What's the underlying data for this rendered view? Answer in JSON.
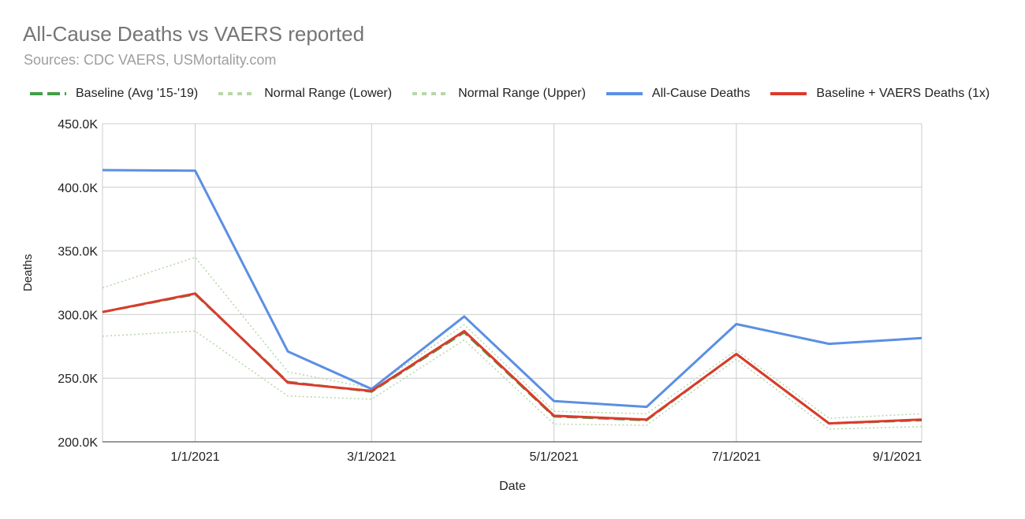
{
  "chart_data": {
    "type": "line",
    "title": "All-Cause Deaths vs VAERS reported",
    "subtitle": "Sources: CDC VAERS, USMortality.com",
    "xlabel": "Date",
    "ylabel": "Deaths",
    "x": [
      "2020-12-01",
      "2021-01-01",
      "2021-02-01",
      "2021-03-01",
      "2021-04-01",
      "2021-05-01",
      "2021-06-01",
      "2021-07-01",
      "2021-08-01",
      "2021-09-01"
    ],
    "x_tick_labels": [
      "1/1/2021",
      "3/1/2021",
      "5/1/2021",
      "7/1/2021",
      "9/1/2021"
    ],
    "y_tick_labels": [
      "200.0K",
      "250.0K",
      "300.0K",
      "350.0K",
      "400.0K",
      "450.0K"
    ],
    "ylim": [
      200000,
      450000
    ],
    "grid": true,
    "legend_position": "top",
    "series": [
      {
        "name": "Baseline (Avg '15-'19)",
        "color": "#43a047",
        "style": "dashed",
        "values": [
          302000,
          316000,
          247000,
          239500,
          286000,
          220000,
          217000,
          269000,
          214500,
          217000
        ]
      },
      {
        "name": "Normal Range (Lower)",
        "color": "#b7d7a8",
        "style": "dotted",
        "values": [
          283000,
          287000,
          236000,
          233500,
          280000,
          214000,
          213000,
          265000,
          210000,
          212000
        ]
      },
      {
        "name": "Normal Range (Upper)",
        "color": "#b7d7a8",
        "style": "dotted",
        "values": [
          321000,
          345000,
          255000,
          242000,
          292000,
          224000,
          222000,
          272000,
          218500,
          222000
        ]
      },
      {
        "name": "All-Cause Deaths",
        "color": "#5b8fe3",
        "style": "solid",
        "values": [
          413500,
          413000,
          271000,
          241500,
          298500,
          232000,
          227500,
          292500,
          277000,
          281500
        ]
      },
      {
        "name": "Baseline + VAERS Deaths (1x)",
        "color": "#dc3a2c",
        "style": "solid",
        "values": [
          302000,
          316500,
          246500,
          240000,
          287000,
          220500,
          217500,
          269000,
          214500,
          217500
        ]
      }
    ]
  }
}
